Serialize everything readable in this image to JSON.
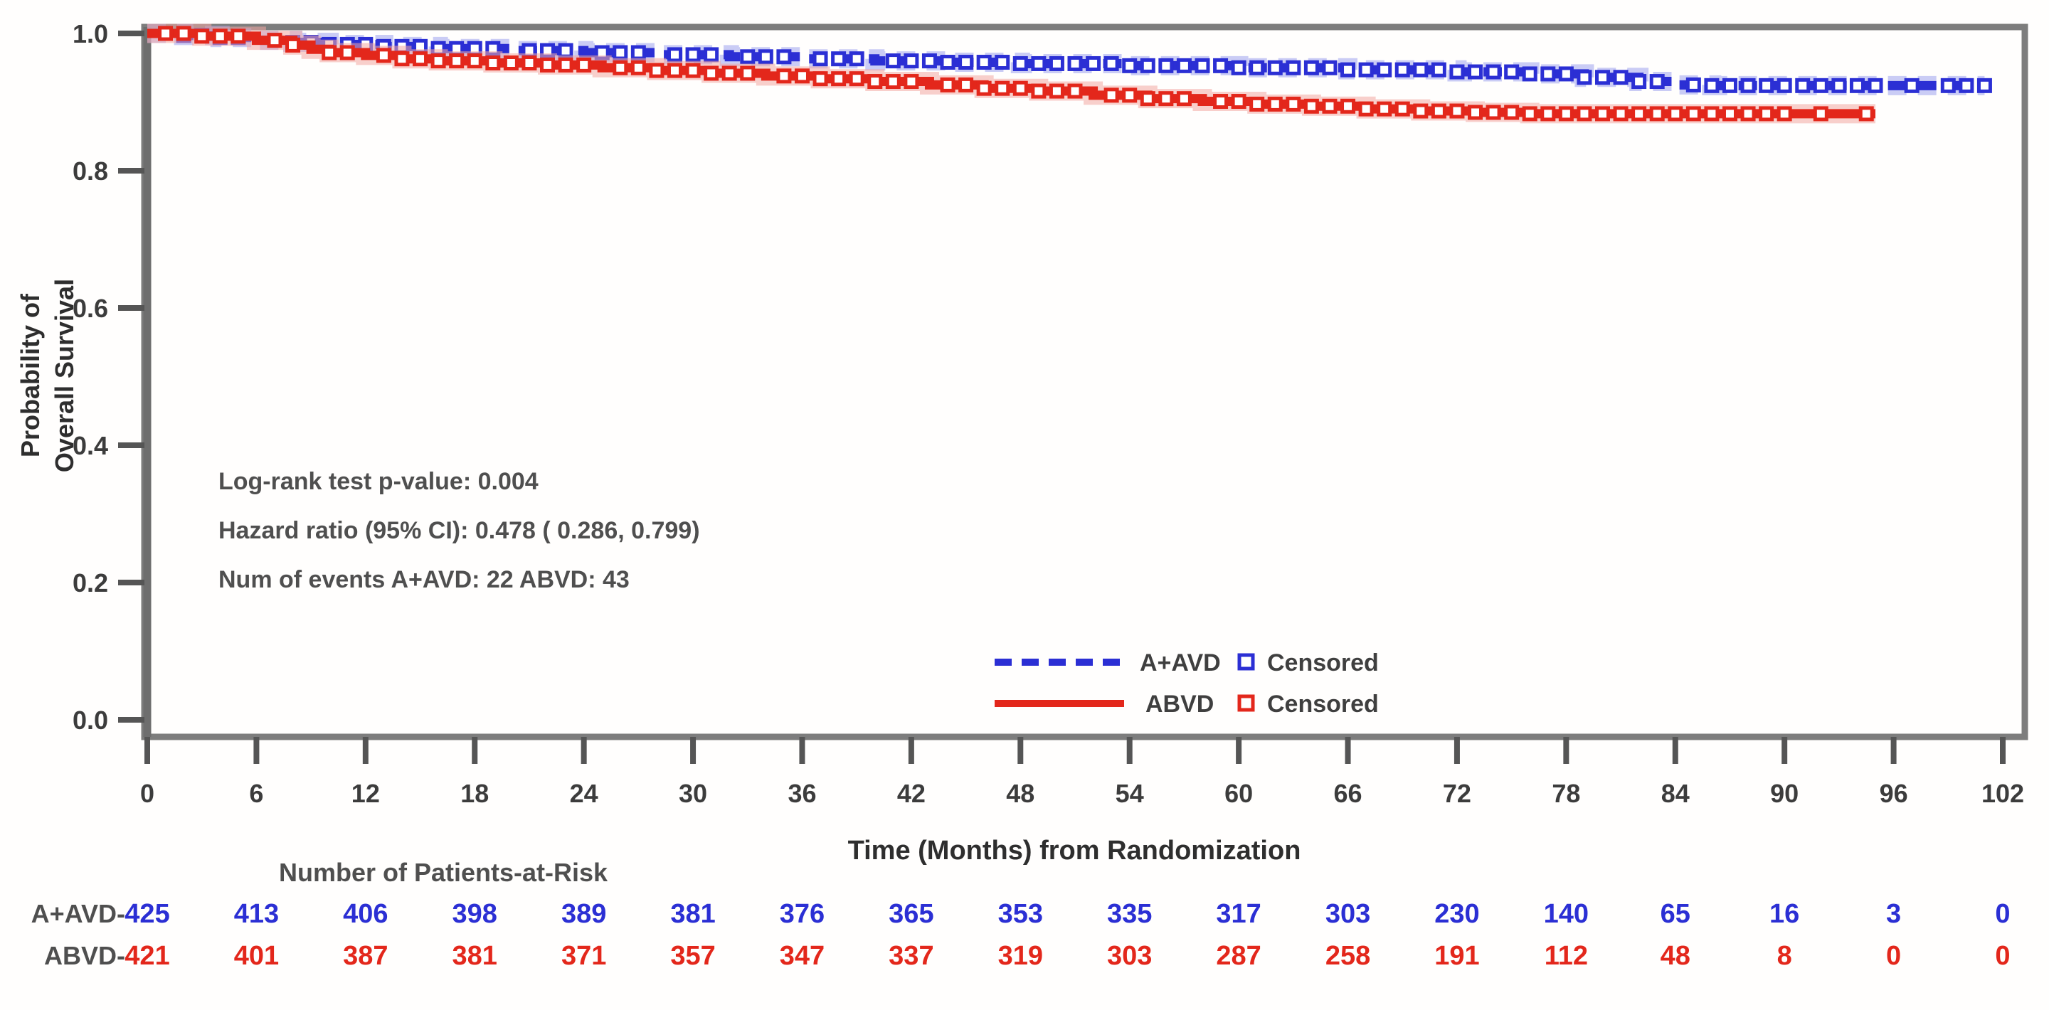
{
  "chart_data": {
    "type": "line",
    "subtype": "kaplan_meier_step_curve",
    "title": "",
    "xlabel": "Time (Months) from Randomization",
    "ylabel_lines": [
      "Probability of",
      "Overall Survival"
    ],
    "xlim": [
      0,
      102
    ],
    "ylim": [
      0.0,
      1.0
    ],
    "grid": false,
    "xticks": [
      0,
      6,
      12,
      18,
      24,
      30,
      36,
      42,
      48,
      54,
      60,
      66,
      72,
      78,
      84,
      90,
      96,
      102
    ],
    "yticks": [
      1.0,
      0.8,
      0.6,
      0.4,
      0.2,
      0.0
    ],
    "annotations": {
      "logrank": "Log-rank test p-value: 0.004",
      "hazard_ratio": "Hazard ratio (95% CI):  0.478 ( 0.286,  0.799)",
      "num_events": "Num of events  A+AVD: 22  ABVD: 43"
    },
    "legend_position": "inside-bottom-right",
    "series": [
      {
        "name": "A+AVD",
        "censored_label": "Censored",
        "color": "#2b2fd4",
        "halo_color": "#9fa3ef",
        "line_style": "dashed",
        "steps": [
          [
            0,
            1.0
          ],
          [
            2,
            0.997
          ],
          [
            4,
            0.994
          ],
          [
            6,
            0.99
          ],
          [
            8,
            0.987
          ],
          [
            10,
            0.984
          ],
          [
            13,
            0.981
          ],
          [
            16,
            0.978
          ],
          [
            20,
            0.975
          ],
          [
            24,
            0.972
          ],
          [
            28,
            0.969
          ],
          [
            32,
            0.966
          ],
          [
            36,
            0.963
          ],
          [
            40,
            0.96
          ],
          [
            44,
            0.958
          ],
          [
            48,
            0.956
          ],
          [
            54,
            0.953
          ],
          [
            60,
            0.95
          ],
          [
            66,
            0.947
          ],
          [
            72,
            0.944
          ],
          [
            76,
            0.941
          ],
          [
            79,
            0.936
          ],
          [
            82,
            0.93
          ],
          [
            84,
            0.925
          ],
          [
            86,
            0.924
          ],
          [
            101,
            0.924
          ]
        ],
        "censor_times": [
          1,
          2,
          3,
          4,
          5,
          7,
          8,
          9,
          10,
          11,
          12,
          13,
          14,
          15,
          16,
          17,
          18,
          19,
          21,
          22,
          23,
          25,
          26,
          27,
          29,
          30,
          31,
          33,
          34,
          35,
          37,
          38,
          39,
          41,
          42,
          43,
          44,
          45,
          46,
          47,
          48,
          49,
          50,
          51,
          52,
          53,
          54,
          55,
          56,
          57,
          58,
          59,
          60,
          61,
          62,
          63,
          64,
          65,
          66,
          67,
          68,
          69,
          70,
          71,
          72,
          73,
          74,
          75,
          76,
          77,
          78,
          79,
          80,
          81,
          82,
          83,
          85,
          86,
          87,
          88,
          89,
          90,
          91,
          92,
          93,
          94,
          95,
          97,
          99,
          100,
          101
        ]
      },
      {
        "name": "ABVD",
        "censored_label": "Censored",
        "color": "#e3271b",
        "halo_color": "#f3a8a2",
        "line_style": "solid",
        "steps": [
          [
            0,
            1.0
          ],
          [
            3,
            0.996
          ],
          [
            6,
            0.99
          ],
          [
            8,
            0.983
          ],
          [
            9,
            0.977
          ],
          [
            10,
            0.972
          ],
          [
            12,
            0.968
          ],
          [
            14,
            0.963
          ],
          [
            16,
            0.96
          ],
          [
            19,
            0.957
          ],
          [
            22,
            0.954
          ],
          [
            25,
            0.95
          ],
          [
            28,
            0.946
          ],
          [
            31,
            0.942
          ],
          [
            34,
            0.938
          ],
          [
            37,
            0.934
          ],
          [
            40,
            0.93
          ],
          [
            43,
            0.925
          ],
          [
            46,
            0.92
          ],
          [
            49,
            0.916
          ],
          [
            52,
            0.91
          ],
          [
            55,
            0.905
          ],
          [
            58,
            0.901
          ],
          [
            61,
            0.897
          ],
          [
            64,
            0.894
          ],
          [
            67,
            0.89
          ],
          [
            70,
            0.887
          ],
          [
            73,
            0.885
          ],
          [
            76,
            0.883
          ],
          [
            95,
            0.883
          ]
        ],
        "censor_times": [
          1,
          2,
          3,
          4,
          5,
          7,
          8,
          10,
          11,
          13,
          14,
          15,
          16,
          17,
          18,
          19,
          20,
          21,
          22,
          23,
          24,
          26,
          27,
          28,
          29,
          30,
          31,
          32,
          33,
          35,
          36,
          37,
          38,
          39,
          40,
          41,
          42,
          44,
          45,
          46,
          47,
          48,
          49,
          50,
          51,
          53,
          54,
          55,
          56,
          57,
          59,
          60,
          61,
          62,
          63,
          64,
          65,
          66,
          67,
          68,
          69,
          70,
          71,
          72,
          73,
          74,
          75,
          76,
          77,
          78,
          79,
          80,
          81,
          82,
          83,
          84,
          85,
          86,
          87,
          88,
          89,
          90,
          92,
          94.5
        ]
      }
    ],
    "at_risk": {
      "title": "Number of Patients-at-Risk",
      "row_labels": [
        "A+AVD-",
        "ABVD-"
      ],
      "rows": [
        {
          "name": "A+AVD",
          "values": [
            425,
            413,
            406,
            398,
            389,
            381,
            376,
            365,
            353,
            335,
            317,
            303,
            230,
            140,
            65,
            16,
            3,
            0
          ]
        },
        {
          "name": "ABVD",
          "values": [
            421,
            401,
            387,
            381,
            371,
            357,
            347,
            337,
            319,
            303,
            287,
            258,
            191,
            112,
            48,
            8,
            0,
            0
          ]
        }
      ]
    },
    "colors": {
      "frame": "#7d7d7d",
      "tick": "#555555",
      "text": "#3c3c3c"
    }
  }
}
